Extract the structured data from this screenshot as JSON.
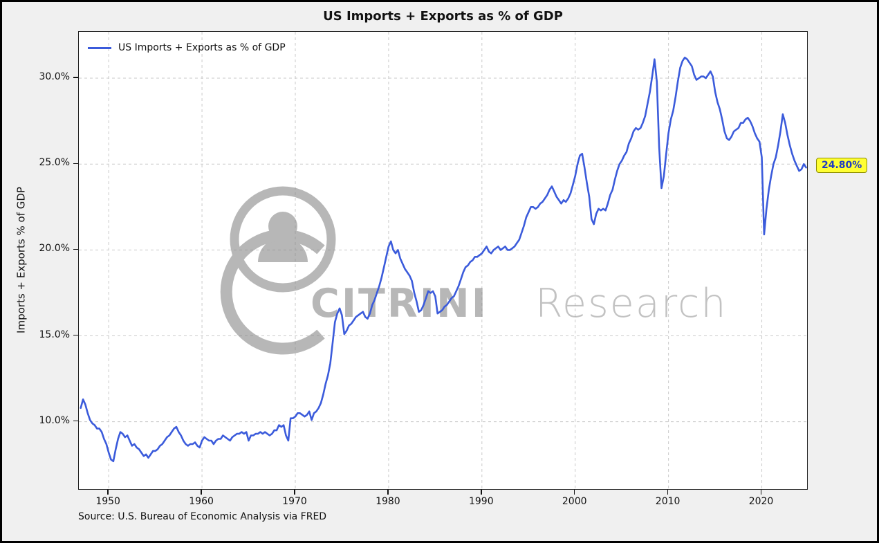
{
  "figure": {
    "title": "US Imports + Exports as % of GDP",
    "legend_label": "US Imports + Exports as % of GDP",
    "ylabel": "Imports + Exports % of GDP",
    "source": "Source: U.S. Bureau of Economic Analysis via FRED",
    "annotation": {
      "text": "24.80%",
      "bg_color": "#ffff33",
      "text_color": "#1f3bc4",
      "border_color": "#8a8a00"
    },
    "watermark": {
      "bold": "CITRINI",
      "light": "Research"
    },
    "colors": {
      "figure_bg": "#f0f0f0",
      "plot_bg": "#ffffff",
      "grid": "#c9c9c9",
      "line": "#3b5bdb"
    }
  },
  "chart_data": {
    "type": "line",
    "title": "US Imports + Exports as % of GDP",
    "xlabel": "",
    "ylabel": "Imports + Exports % of GDP",
    "xlim": [
      1946.8,
      2025.0
    ],
    "ylim": [
      6.0,
      32.7
    ],
    "xticks": [
      1950,
      1960,
      1970,
      1980,
      1990,
      2000,
      2010,
      2020
    ],
    "yticks": [
      10,
      15,
      20,
      25,
      30
    ],
    "ytick_suffix": "%",
    "grid": true,
    "grid_style": "dashed",
    "legend_position": "upper left",
    "last_value_label": "24.80%",
    "source": "Source: U.S. Bureau of Economic Analysis via FRED",
    "series": [
      {
        "name": "US Imports + Exports as % of GDP",
        "color": "#3b5bdb",
        "x_start": 1947.0,
        "x_step": 0.25,
        "values": [
          10.8,
          11.3,
          11.0,
          10.5,
          10.1,
          9.9,
          9.8,
          9.6,
          9.6,
          9.4,
          9.0,
          8.7,
          8.2,
          7.8,
          7.7,
          8.4,
          9.0,
          9.4,
          9.3,
          9.1,
          9.2,
          8.9,
          8.6,
          8.7,
          8.5,
          8.4,
          8.2,
          8.0,
          8.1,
          7.9,
          8.1,
          8.3,
          8.3,
          8.4,
          8.6,
          8.7,
          8.9,
          9.1,
          9.2,
          9.4,
          9.6,
          9.7,
          9.4,
          9.2,
          8.9,
          8.7,
          8.6,
          8.7,
          8.7,
          8.8,
          8.6,
          8.5,
          8.9,
          9.1,
          9.0,
          8.9,
          8.9,
          8.7,
          8.9,
          9.0,
          9.0,
          9.2,
          9.1,
          9.0,
          8.9,
          9.1,
          9.2,
          9.3,
          9.3,
          9.4,
          9.3,
          9.4,
          8.9,
          9.2,
          9.2,
          9.3,
          9.3,
          9.4,
          9.3,
          9.4,
          9.3,
          9.2,
          9.3,
          9.5,
          9.5,
          9.8,
          9.7,
          9.8,
          9.2,
          8.9,
          10.2,
          10.2,
          10.3,
          10.5,
          10.5,
          10.4,
          10.3,
          10.4,
          10.6,
          10.1,
          10.5,
          10.6,
          10.8,
          11.1,
          11.6,
          12.2,
          12.7,
          13.4,
          14.6,
          15.8,
          16.3,
          16.6,
          16.2,
          15.1,
          15.3,
          15.6,
          15.7,
          15.9,
          16.1,
          16.2,
          16.3,
          16.4,
          16.1,
          16.0,
          16.3,
          16.8,
          17.1,
          17.5,
          17.9,
          18.4,
          19.0,
          19.6,
          20.2,
          20.5,
          20.0,
          19.8,
          20.0,
          19.5,
          19.2,
          18.9,
          18.7,
          18.5,
          18.2,
          17.5,
          17.0,
          16.4,
          16.5,
          16.8,
          17.2,
          17.6,
          17.5,
          17.6,
          17.3,
          16.3,
          16.4,
          16.5,
          16.7,
          16.8,
          17.0,
          17.2,
          17.3,
          17.6,
          17.9,
          18.3,
          18.7,
          19.0,
          19.1,
          19.3,
          19.4,
          19.6,
          19.6,
          19.7,
          19.8,
          20.0,
          20.2,
          19.9,
          19.8,
          20.0,
          20.1,
          20.2,
          20.0,
          20.1,
          20.2,
          20.0,
          20.0,
          20.1,
          20.2,
          20.4,
          20.6,
          21.0,
          21.4,
          21.9,
          22.2,
          22.5,
          22.5,
          22.4,
          22.5,
          22.7,
          22.8,
          23.0,
          23.2,
          23.5,
          23.7,
          23.4,
          23.1,
          22.9,
          22.7,
          22.9,
          22.8,
          23.0,
          23.3,
          23.8,
          24.3,
          25.0,
          25.5,
          25.6,
          24.8,
          23.9,
          23.1,
          21.8,
          21.5,
          22.1,
          22.4,
          22.3,
          22.4,
          22.3,
          22.7,
          23.2,
          23.5,
          24.1,
          24.6,
          25.0,
          25.2,
          25.5,
          25.7,
          26.2,
          26.5,
          26.9,
          27.1,
          27.0,
          27.1,
          27.4,
          27.8,
          28.5,
          29.2,
          30.1,
          31.1,
          29.8,
          26.0,
          23.6,
          24.3,
          25.6,
          26.8,
          27.6,
          28.1,
          28.9,
          29.8,
          30.6,
          31.0,
          31.2,
          31.1,
          30.9,
          30.7,
          30.2,
          29.9,
          30.0,
          30.1,
          30.1,
          30.0,
          30.2,
          30.4,
          30.1,
          29.2,
          28.6,
          28.2,
          27.6,
          26.9,
          26.5,
          26.4,
          26.6,
          26.9,
          27.0,
          27.1,
          27.4,
          27.4,
          27.6,
          27.7,
          27.5,
          27.2,
          26.8,
          26.5,
          26.3,
          25.4,
          20.9,
          22.4,
          23.5,
          24.3,
          25.0,
          25.4,
          26.1,
          26.9,
          27.9,
          27.4,
          26.7,
          26.1,
          25.6,
          25.2,
          24.9,
          24.6,
          24.7,
          25.0,
          24.8
        ]
      }
    ]
  }
}
